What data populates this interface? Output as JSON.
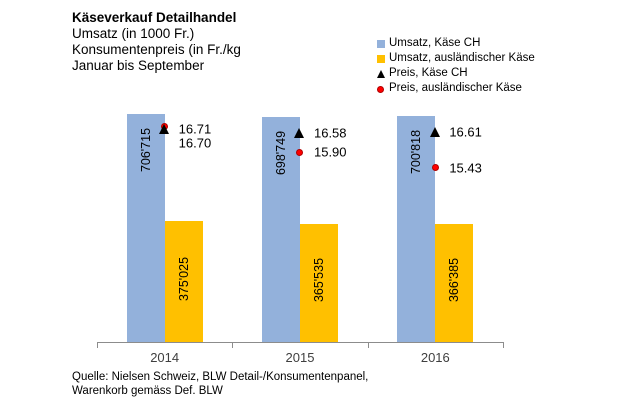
{
  "title": {
    "line1": "Käseverkauf Detailhandel",
    "line2": "Umsatz (in 1000 Fr.)",
    "line3": "Konsumentenpreis (in Fr./kg",
    "line4": "Januar bis September"
  },
  "legend": [
    {
      "label": "Umsatz, Käse CH",
      "marker": "square",
      "color": "#93B1DB"
    },
    {
      "label": "Umsatz, ausländischer Käse",
      "marker": "square",
      "color": "#FFC000"
    },
    {
      "label": "Preis, Käse CH",
      "marker": "triangle",
      "color": "#000000"
    },
    {
      "label": "Preis, ausländischer Käse",
      "marker": "circle",
      "color": "#FF0000"
    }
  ],
  "chart_data": {
    "type": "bar",
    "categories": [
      "2014",
      "2015",
      "2016"
    ],
    "series": [
      {
        "name": "Umsatz, Käse CH",
        "kind": "bar",
        "color": "#93B1DB",
        "values": [
          706715,
          698749,
          700818
        ],
        "labels": [
          "706'715",
          "698'749",
          "700'818"
        ],
        "label_position": "inside-end"
      },
      {
        "name": "Umsatz, ausländischer Käse",
        "kind": "bar",
        "color": "#FFC000",
        "values": [
          375025,
          365535,
          366385
        ],
        "labels": [
          "375'025",
          "365'535",
          "366'385"
        ],
        "label_position": "center"
      },
      {
        "name": "Preis, Käse CH",
        "kind": "marker-triangle",
        "color": "#000000",
        "values": [
          16.71,
          16.58,
          16.61
        ],
        "labels": [
          "16.71",
          "16.58",
          "16.61"
        ]
      },
      {
        "name": "Preis, ausländischer Käse",
        "kind": "marker-circle",
        "color": "#FF0000",
        "values": [
          16.7,
          15.9,
          15.43
        ],
        "labels": [
          "16.70",
          "15.90",
          "15.43"
        ]
      }
    ],
    "value_axis": {
      "min": 0,
      "visible": false,
      "unit": "1000 Fr."
    },
    "secondary_value_axis": {
      "visible": false,
      "unit": "Fr./kg"
    },
    "grid": false,
    "legend_position": "top-right"
  },
  "source": {
    "line1": "Quelle: Nielsen Schweiz, BLW Detail-/Konsumentenpanel,",
    "line2": "Warenkorb gemäss Def. BLW"
  }
}
